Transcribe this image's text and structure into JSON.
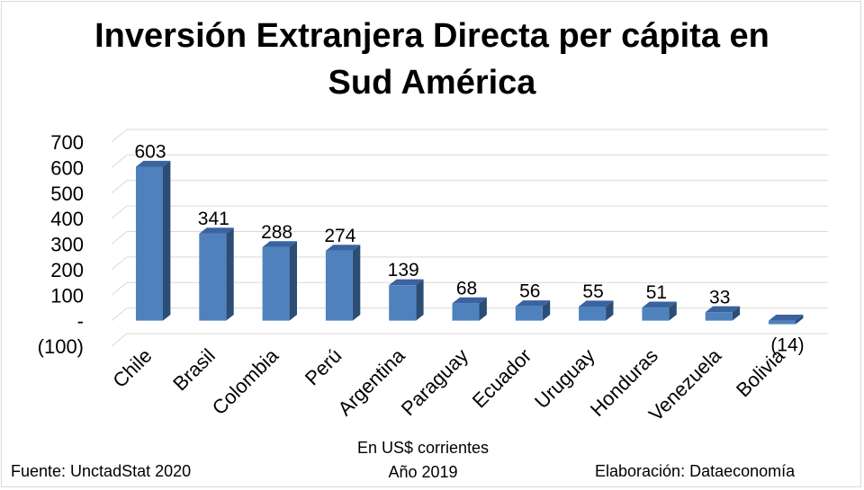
{
  "title_line1": "Inversión Extranjera Directa per cápita en",
  "title_line2": "Sud América",
  "source": "Fuente: UnctadStat 2020",
  "elaboration": "Elaboración: Dataeconomía",
  "footnote_line1": "En US$ corrientes",
  "footnote_line2": "Año 2019",
  "colors": {
    "bar_front": "#4f81bd",
    "bar_side": "#2c4d75",
    "bar_top": "#3a63a0"
  },
  "chart_data": {
    "type": "bar",
    "title": "Inversión Extranjera Directa per cápita en Sud América",
    "categories": [
      "Chile",
      "Brasil",
      "Colombia",
      "Perú",
      "Argentina",
      "Paraguay",
      "Ecuador",
      "Uruguay",
      "Honduras",
      "Venezuela",
      "Bolivia"
    ],
    "values": [
      603,
      341,
      288,
      274,
      139,
      68,
      56,
      55,
      51,
      33,
      -14
    ],
    "data_labels": [
      "603",
      "341",
      "288",
      "274",
      "139",
      "68",
      "56",
      "55",
      "51",
      "33",
      "(14)"
    ],
    "y_ticks": [
      700,
      600,
      500,
      400,
      300,
      200,
      100,
      0,
      -100
    ],
    "y_tick_labels": [
      "700",
      "600",
      "500",
      "400",
      "300",
      "200",
      "100",
      "-",
      "(100)"
    ],
    "ylim": [
      -100,
      700
    ],
    "grid": true,
    "legend": "none"
  }
}
